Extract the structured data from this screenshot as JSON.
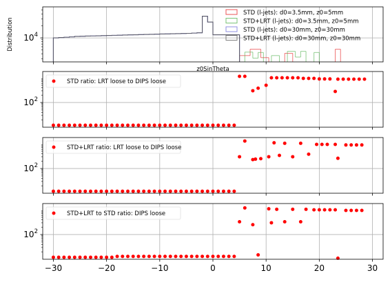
{
  "chart_data": [
    {
      "type": "histogram",
      "ylabel": "Distribution",
      "xlabel": "z0SinTheta",
      "ylog": true,
      "grid": true,
      "legend_position": "top-right",
      "yticks": [
        {
          "value": 10000,
          "base": "10",
          "exp": "4"
        }
      ],
      "ylim": [
        2500,
        60000
      ],
      "xlim": [
        -32,
        32
      ],
      "series": [
        {
          "name": "STD (l-jets): d0=3.5mm, z0=5mm",
          "color": "#e41a1c",
          "steps": [
            [
              5.0,
              2000,
              3600
            ],
            [
              7.0,
              3600,
              5200
            ],
            [
              9.0,
              5200,
              3200
            ],
            [
              10.5,
              3200,
              2000
            ],
            [
              13.5,
              2000,
              4100
            ],
            [
              15.0,
              4100,
              2000
            ],
            [
              23.0,
              2000,
              5200
            ],
            [
              24.0,
              5200,
              2000
            ]
          ]
        },
        {
          "name": "STD+LRT (l-jets): d0=3.5mm, z0=5mm",
          "color": "#4daf4a",
          "steps": [
            [
              6.0,
              2000,
              4400
            ],
            [
              7.5,
              4400,
              3100
            ],
            [
              8.5,
              3100,
              4300
            ],
            [
              9.5,
              4300,
              2000
            ],
            [
              11.0,
              2000,
              3600
            ],
            [
              12.5,
              3600,
              2000
            ],
            [
              14.0,
              2000,
              4600
            ],
            [
              15.5,
              4600,
              3300
            ],
            [
              16.5,
              3300,
              4600
            ],
            [
              17.5,
              4600,
              2000
            ],
            [
              19.0,
              2000,
              4300
            ],
            [
              20.0,
              4300,
              2000
            ]
          ]
        },
        {
          "name": "STD (l-jets): d0=30mm, z0=30mm",
          "color": "#6a6ad8",
          "histogram": [
            [
              -30,
              -29,
              10000
            ],
            [
              -29,
              -28,
              10200
            ],
            [
              -28,
              -27,
              10400
            ],
            [
              -27,
              -26,
              10600
            ],
            [
              -26,
              -25,
              10900
            ],
            [
              -25,
              -24,
              11000
            ],
            [
              -24,
              -23,
              11100
            ],
            [
              -23,
              -22,
              11200
            ],
            [
              -22,
              -21,
              11300
            ],
            [
              -21,
              -20,
              11400
            ],
            [
              -20,
              -19,
              11500
            ],
            [
              -19,
              -18,
              11600
            ],
            [
              -18,
              -17,
              11700
            ],
            [
              -17,
              -16,
              11800
            ],
            [
              -16,
              -15,
              11900
            ],
            [
              -15,
              -14,
              12000
            ],
            [
              -14,
              -13,
              12100
            ],
            [
              -13,
              -12,
              12200
            ],
            [
              -12,
              -11,
              12300
            ],
            [
              -11,
              -10,
              12400
            ],
            [
              -10,
              -9,
              12500
            ],
            [
              -9,
              -8,
              12600
            ],
            [
              -8,
              -7,
              12700
            ],
            [
              -7,
              -6,
              12800
            ],
            [
              -6,
              -5,
              12900
            ],
            [
              -5,
              -4,
              13000
            ],
            [
              -4,
              -3,
              13200
            ],
            [
              -3,
              -2,
              13400
            ],
            [
              -2,
              -1,
              35000
            ],
            [
              -1,
              0,
              25000
            ],
            [
              0,
              5,
              12000
            ]
          ]
        },
        {
          "name": "STD+LRT (l-jets): d0=30mm, z0=30mm",
          "color": "#555555",
          "histogram": [
            [
              -30,
              -29,
              10000
            ],
            [
              -29,
              -28,
              10200
            ],
            [
              -28,
              -27,
              10400
            ],
            [
              -27,
              -26,
              10600
            ],
            [
              -26,
              -25,
              10900
            ],
            [
              -25,
              -24,
              11000
            ],
            [
              -24,
              -23,
              11100
            ],
            [
              -23,
              -22,
              11200
            ],
            [
              -22,
              -21,
              11300
            ],
            [
              -21,
              -20,
              11400
            ],
            [
              -20,
              -19,
              11500
            ],
            [
              -19,
              -18,
              11600
            ],
            [
              -18,
              -17,
              11700
            ],
            [
              -17,
              -16,
              11800
            ],
            [
              -16,
              -15,
              11900
            ],
            [
              -15,
              -14,
              12000
            ],
            [
              -14,
              -13,
              12100
            ],
            [
              -13,
              -12,
              12200
            ],
            [
              -12,
              -11,
              12300
            ],
            [
              -11,
              -10,
              12400
            ],
            [
              -10,
              -9,
              12500
            ],
            [
              -9,
              -8,
              12600
            ],
            [
              -8,
              -7,
              12700
            ],
            [
              -7,
              -6,
              12800
            ],
            [
              -6,
              -5,
              12900
            ],
            [
              -5,
              -4,
              13000
            ],
            [
              -4,
              -3,
              13200
            ],
            [
              -3,
              -2,
              13400
            ],
            [
              -2,
              -1,
              35000
            ],
            [
              -1,
              0,
              25000
            ],
            [
              0,
              5,
              12000
            ]
          ]
        }
      ]
    },
    {
      "type": "scatter",
      "series": [
        {
          "name": "STD ratio: LRT loose to DIPS loose",
          "color": "#ff0000"
        }
      ],
      "ylog": true,
      "grid": true,
      "legend_position": "top-left",
      "yticks": [
        {
          "value": 100,
          "base": "10",
          "exp": "2"
        }
      ],
      "ylim": [
        10,
        1800
      ],
      "x": [
        -30,
        -29,
        -28,
        -27,
        -26,
        -25,
        -24,
        -23,
        -22,
        -21,
        -20,
        -19,
        -18,
        -17,
        -16,
        -15,
        -14,
        -13,
        -12,
        -11,
        -10,
        -9,
        -8,
        -7,
        -6,
        -5,
        -4,
        -3,
        -2,
        -1,
        0,
        1,
        2,
        3,
        4,
        5,
        6,
        7.5,
        8.5,
        10,
        11,
        12,
        13,
        14,
        15,
        16,
        17,
        18,
        19,
        20,
        21,
        22,
        23,
        23.5,
        24.5,
        25.5,
        26.5,
        27.5,
        28.5
      ],
      "y": [
        12,
        12,
        12,
        12,
        12,
        12,
        12,
        12,
        12,
        12,
        12,
        12,
        12,
        12,
        12,
        12,
        12,
        12,
        12,
        12,
        12,
        12,
        12,
        12,
        12,
        12,
        12,
        12,
        12,
        12,
        12,
        12,
        12,
        12,
        12,
        1150,
        1150,
        300,
        380,
        500,
        1000,
        1000,
        1000,
        1000,
        1000,
        1000,
        950,
        950,
        950,
        900,
        900,
        900,
        280,
        880,
        880,
        880,
        880,
        880,
        880
      ]
    },
    {
      "type": "scatter",
      "series": [
        {
          "name": "STD+LRT ratio: LRT loose to DIPS loose",
          "color": "#ff0000"
        }
      ],
      "ylog": true,
      "grid": true,
      "legend_position": "top-left",
      "yticks": [
        {
          "value": 100,
          "base": "10",
          "exp": "2"
        }
      ],
      "ylim": [
        10,
        1800
      ],
      "x": [
        -30,
        -29,
        -28,
        -27,
        -26,
        -25,
        -24,
        -23,
        -22,
        -21,
        -20,
        -19,
        -18,
        -17,
        -16,
        -15,
        -14,
        -13,
        -12,
        -11,
        -10,
        -9,
        -8,
        -7,
        -6,
        -5,
        -4,
        -3,
        -2,
        -1,
        0,
        1,
        2,
        3,
        4,
        5,
        6,
        7.5,
        8,
        9,
        10.5,
        11.5,
        12.5,
        13.5,
        15,
        16.5,
        18,
        19.5,
        20.5,
        21.5,
        23,
        23.5,
        25,
        26,
        27,
        28
      ],
      "y": [
        12,
        12,
        12,
        12,
        12,
        12,
        12,
        12,
        12,
        12,
        12,
        12,
        12,
        12,
        12,
        12,
        12,
        12,
        12,
        12,
        12,
        12,
        12,
        12,
        12,
        12,
        12,
        12,
        12,
        12,
        12,
        12,
        12,
        12,
        12,
        300,
        1300,
        230,
        240,
        250,
        300,
        1100,
        340,
        1050,
        300,
        1050,
        380,
        950,
        950,
        950,
        950,
        260,
        900,
        900,
        900,
        900
      ]
    },
    {
      "type": "scatter",
      "series": [
        {
          "name": "STD+LRT to STD ratio: DIPS loose",
          "color": "#ff0000"
        }
      ],
      "ylog": true,
      "grid": true,
      "legend_position": "top-left",
      "yticks": [
        {
          "value": 100,
          "base": "10",
          "exp": "2"
        }
      ],
      "xticks": [
        -30,
        -20,
        -10,
        0,
        10,
        20,
        30
      ],
      "xlim": [
        -32,
        32
      ],
      "ylim": [
        10,
        1800
      ],
      "x": [
        -30,
        -29,
        -28,
        -27,
        -26,
        -25,
        -24,
        -23,
        -22,
        -21,
        -20,
        -19,
        -18,
        -17,
        -16,
        -15,
        -14,
        -13,
        -12,
        -11,
        -10,
        -9,
        -8,
        -7,
        -6,
        -5,
        -4,
        -3,
        -2,
        -1,
        0,
        1,
        2,
        3,
        4,
        5,
        6,
        7.5,
        8.5,
        10.5,
        11,
        12,
        13.5,
        15,
        16.5,
        17.5,
        19,
        20,
        21,
        22,
        23,
        23.5,
        25,
        26,
        27,
        28
      ],
      "y": [
        12,
        12,
        12,
        12,
        12,
        12,
        12,
        12,
        12,
        12,
        12,
        12,
        13,
        13,
        13,
        13,
        13,
        13,
        13,
        13,
        13,
        13,
        13,
        13,
        13,
        13,
        13,
        13,
        13,
        13,
        13,
        13,
        13,
        13,
        13,
        330,
        1200,
        250,
        15,
        1100,
        300,
        1050,
        330,
        1050,
        330,
        1050,
        1000,
        1000,
        1000,
        1000,
        1000,
        11,
        950,
        950,
        950,
        950
      ]
    }
  ]
}
